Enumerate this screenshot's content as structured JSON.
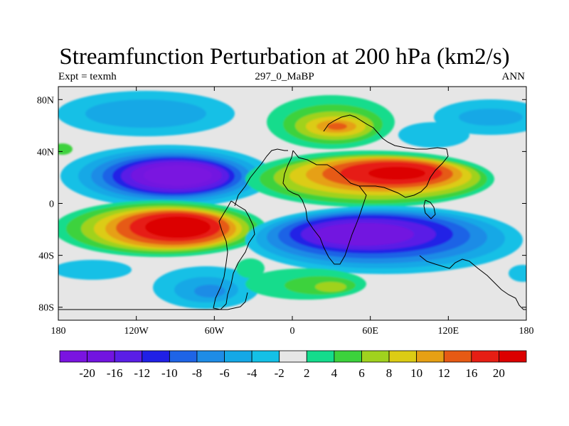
{
  "title": "Streamfunction Perturbation at 200 hPa (km2/s)",
  "subtitle_left": "Expt = texmh",
  "subtitle_center": "297_0_MaBP",
  "subtitle_right": "ANN",
  "chart_data": {
    "type": "filled-contour-map",
    "projection": "cylindrical-equidistant",
    "variable": "streamfunction perturbation",
    "level": "200 hPa",
    "units": "km2/s",
    "x_ticks": [
      "180",
      "120W",
      "60W",
      "0",
      "60E",
      "120E",
      "180"
    ],
    "y_ticks": [
      "80N",
      "40N",
      "0",
      "40S",
      "80S"
    ],
    "lon_range": [
      -180,
      180
    ],
    "lat_range": [
      -90,
      90
    ],
    "colorbar_labels": [
      "-20",
      "-16",
      "-12",
      "-10",
      "-8",
      "-6",
      "-4",
      "-2",
      "2",
      "4",
      "6",
      "8",
      "10",
      "12",
      "16",
      "20"
    ],
    "colorbar_colors": [
      "#7a14e0",
      "#7214e0",
      "#5a1ee6",
      "#2020e6",
      "#1e64e6",
      "#1e8ce6",
      "#14a8e6",
      "#14c0e6",
      "#e6e6e6",
      "#14dc8c",
      "#3cd23c",
      "#a0d21e",
      "#dccc14",
      "#e6a014",
      "#e65a14",
      "#e61e14",
      "#dc0000"
    ],
    "features": [
      {
        "name": "north-pacific-low",
        "lon": -90,
        "lat": 22,
        "value": -20
      },
      {
        "name": "south-pacific-high",
        "lon": -80,
        "lat": -18,
        "value": 20
      },
      {
        "name": "asian-high",
        "lon": 75,
        "lat": 22,
        "value": 16
      },
      {
        "name": "indian-ocean-low",
        "lon": 70,
        "lat": -25,
        "value": -16
      },
      {
        "name": "north-atlantic-high",
        "lon": 35,
        "lat": 60,
        "value": 12
      },
      {
        "name": "arctic-negative-band",
        "lon": -100,
        "lat": 65,
        "value": -6
      },
      {
        "name": "southern-ocean-positive",
        "lon": 20,
        "lat": -65,
        "value": 8
      }
    ]
  }
}
